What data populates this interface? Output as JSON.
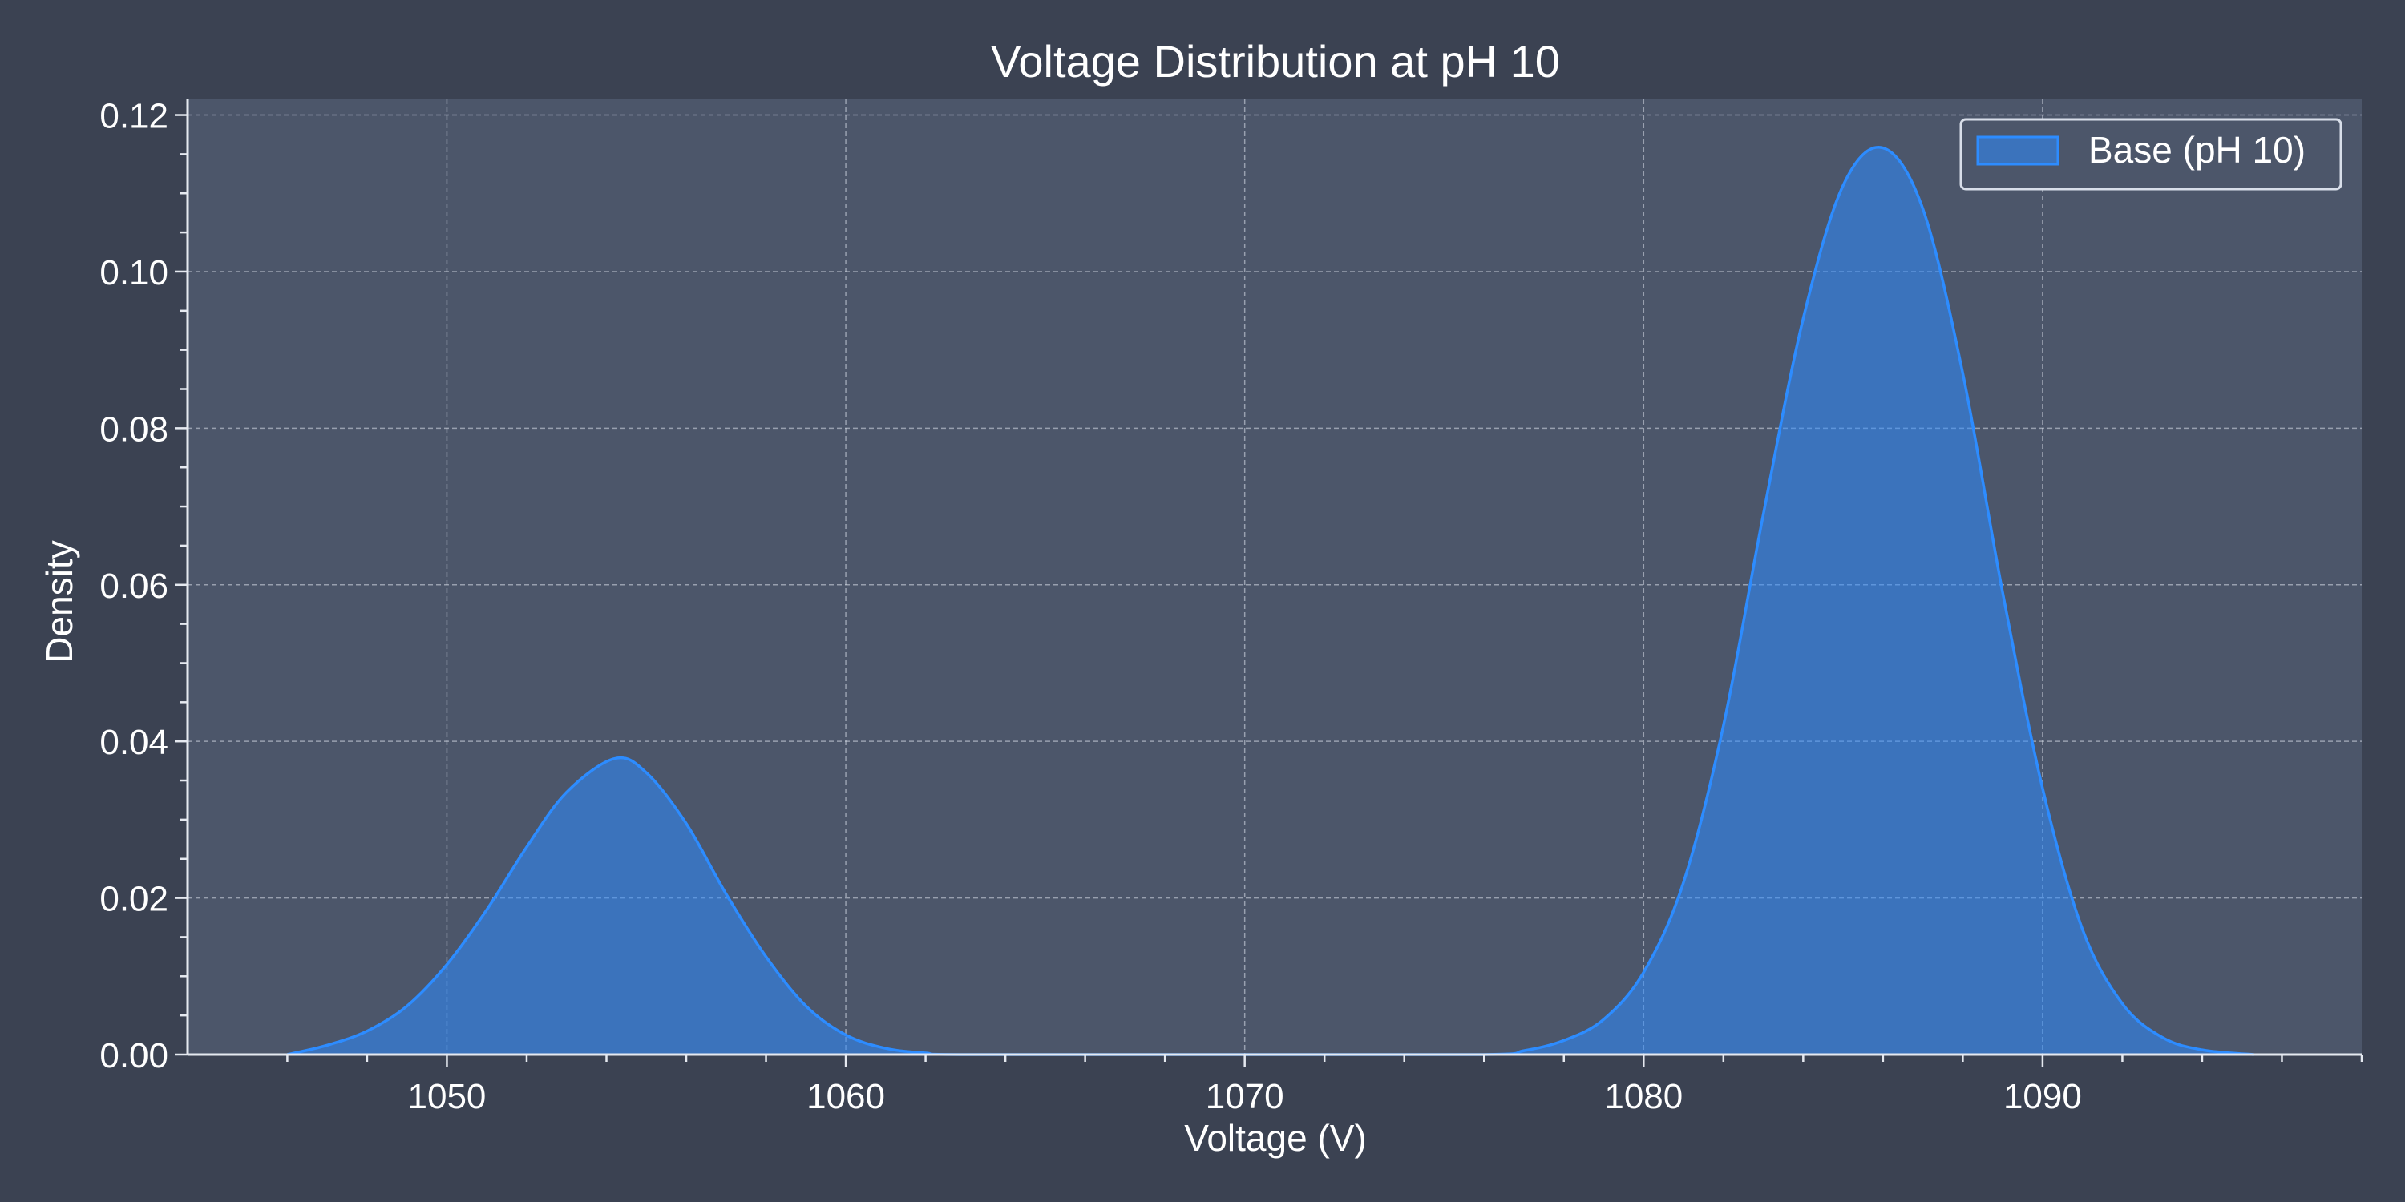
{
  "chart_data": {
    "type": "area",
    "title": "Voltage Distribution at pH 10",
    "xlabel": "Voltage (V)",
    "ylabel": "Density",
    "xlim": [
      1043.5,
      1098
    ],
    "ylim": [
      0,
      0.122
    ],
    "xticks": [
      1050,
      1060,
      1070,
      1080,
      1090
    ],
    "yticks": [
      0.0,
      0.02,
      0.04,
      0.06,
      0.08,
      0.1,
      0.12
    ],
    "ytick_labels": [
      "0.00",
      "0.02",
      "0.04",
      "0.06",
      "0.08",
      "0.10",
      "0.12"
    ],
    "grid": true,
    "legend_position": "top-right",
    "background_color": "#3b4252",
    "plot_background_color": "#4c566a",
    "series": [
      {
        "name": "Base (pH 10)",
        "color": "#2d8cff",
        "x": [
          1046.0,
          1047.0,
          1048.0,
          1049.0,
          1050.0,
          1051.0,
          1052.0,
          1053.0,
          1054.2,
          1055.0,
          1056.0,
          1057.0,
          1058.0,
          1059.0,
          1060.0,
          1061.0,
          1062.0,
          1063.0,
          1070.0,
          1076.0,
          1077.0,
          1078.0,
          1079.0,
          1080.0,
          1081.0,
          1082.0,
          1083.0,
          1084.0,
          1085.0,
          1086.0,
          1087.0,
          1088.0,
          1089.0,
          1090.0,
          1091.0,
          1092.0,
          1093.0,
          1094.0,
          1095.3
        ],
        "y": [
          0.0,
          0.0012,
          0.003,
          0.0062,
          0.0115,
          0.0185,
          0.0265,
          0.0335,
          0.0378,
          0.036,
          0.0295,
          0.0205,
          0.0125,
          0.0062,
          0.0025,
          0.0008,
          0.0002,
          0.0,
          0.0,
          0.0,
          0.0005,
          0.0018,
          0.0045,
          0.0105,
          0.022,
          0.042,
          0.069,
          0.094,
          0.111,
          0.1158,
          0.108,
          0.087,
          0.059,
          0.034,
          0.016,
          0.0065,
          0.0022,
          0.0006,
          0.0
        ]
      }
    ]
  }
}
